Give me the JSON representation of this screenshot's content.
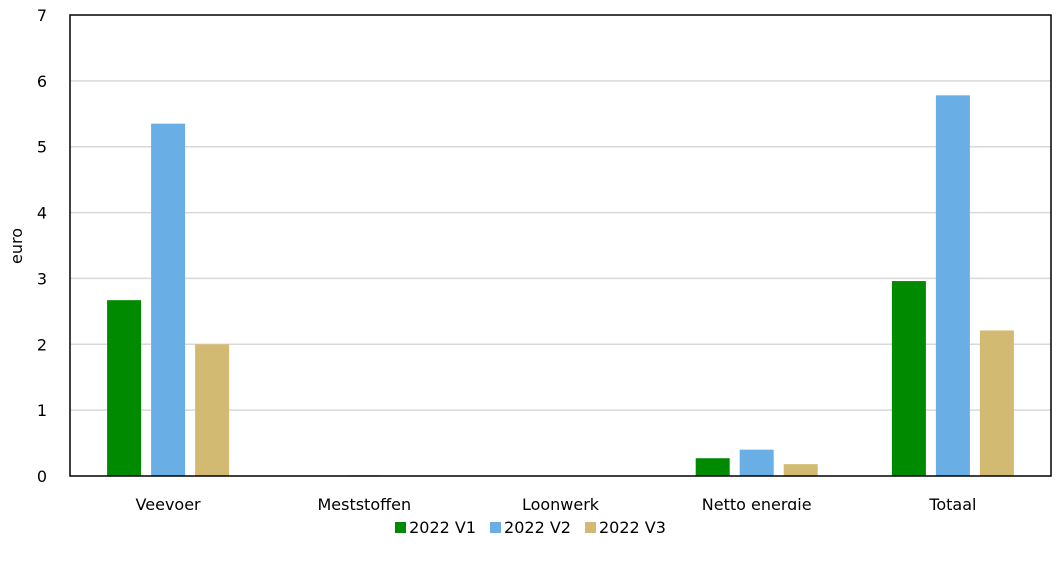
{
  "chart_data": {
    "type": "bar",
    "ylabel": "euro",
    "ylim": [
      0,
      7
    ],
    "yticks": [
      "0",
      "1",
      "2",
      "3",
      "4",
      "5",
      "6",
      "7"
    ],
    "grid": true,
    "legend_position": "bottom",
    "categories": [
      "Veevoer",
      "Meststoffen",
      "Loonwerk",
      "Netto energie",
      "Totaal"
    ],
    "series": [
      {
        "name": "2022 V1",
        "color": "#008a00",
        "values": [
          2.67,
          0.0,
          0.0,
          0.27,
          2.96
        ]
      },
      {
        "name": "2022 V2",
        "color": "#6aaee6",
        "values": [
          5.35,
          0.01,
          0.0,
          0.4,
          5.78
        ]
      },
      {
        "name": "2022 V3",
        "color": "#d3ba72",
        "values": [
          2.0,
          0.0,
          0.0,
          0.18,
          2.21
        ]
      }
    ]
  }
}
